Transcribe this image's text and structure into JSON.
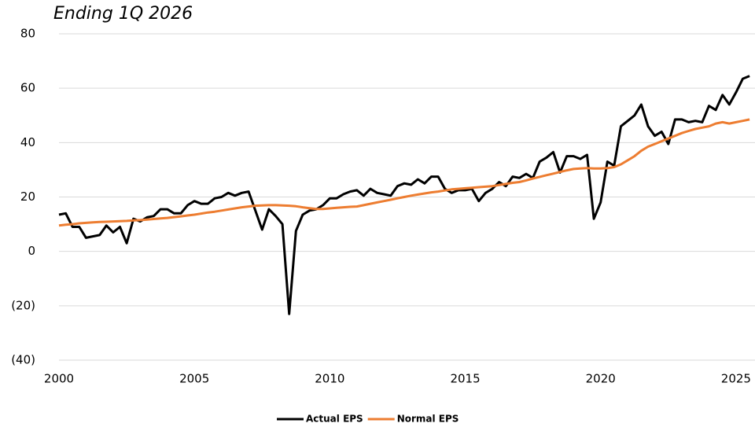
{
  "chart_data": {
    "type": "line",
    "title": "Ending 1Q 2026",
    "x": [
      2000,
      2000.25,
      2000.5,
      2000.75,
      2001,
      2001.25,
      2001.5,
      2001.75,
      2002,
      2002.25,
      2002.5,
      2002.75,
      2003,
      2003.25,
      2003.5,
      2003.75,
      2004,
      2004.25,
      2004.5,
      2004.75,
      2005,
      2005.25,
      2005.5,
      2005.75,
      2006,
      2006.25,
      2006.5,
      2006.75,
      2007,
      2007.25,
      2007.5,
      2007.75,
      2008,
      2008.25,
      2008.5,
      2008.75,
      2009,
      2009.25,
      2009.5,
      2009.75,
      2010,
      2010.25,
      2010.5,
      2010.75,
      2011,
      2011.25,
      2011.5,
      2011.75,
      2012,
      2012.25,
      2012.5,
      2012.75,
      2013,
      2013.25,
      2013.5,
      2013.75,
      2014,
      2014.25,
      2014.5,
      2014.75,
      2015,
      2015.25,
      2015.5,
      2015.75,
      2016,
      2016.25,
      2016.5,
      2016.75,
      2017,
      2017.25,
      2017.5,
      2017.75,
      2018,
      2018.25,
      2018.5,
      2018.75,
      2019,
      2019.25,
      2019.5,
      2019.75,
      2020,
      2020.25,
      2020.5,
      2020.75,
      2021,
      2021.25,
      2021.5,
      2021.75,
      2022,
      2022.25,
      2022.5,
      2022.75,
      2023,
      2023.25,
      2023.5,
      2023.75,
      2024,
      2024.25,
      2024.5,
      2024.75,
      2025,
      2025.25,
      2025.5
    ],
    "series": [
      {
        "name": "Actual EPS",
        "color": "#000000",
        "values": [
          13.5,
          14,
          9,
          9,
          5,
          5.5,
          6,
          9.5,
          7,
          9,
          3,
          12,
          11,
          12.5,
          13,
          15.5,
          15.5,
          14,
          14,
          17,
          18.5,
          17.5,
          17.5,
          19.5,
          20,
          21.5,
          20.5,
          21.5,
          22,
          15,
          8,
          15.5,
          13,
          10,
          -23,
          7.5,
          13.5,
          15,
          15.5,
          17,
          19.5,
          19.5,
          21,
          22,
          22.5,
          20.5,
          23,
          21.5,
          21,
          20.5,
          24,
          25,
          24.5,
          26.5,
          25,
          27.5,
          27.5,
          23,
          21.5,
          22.5,
          22.5,
          23,
          18.5,
          21.5,
          23,
          25.5,
          24,
          27.5,
          27,
          28.5,
          27,
          33,
          34.5,
          36.5,
          29,
          35,
          35,
          34,
          35.5,
          12,
          18,
          33,
          31.5,
          46,
          48,
          50,
          54,
          46,
          42.5,
          44,
          39.5,
          48.5,
          48.5,
          47.5,
          48,
          47.5,
          53.5,
          52,
          57.5,
          54,
          58.5,
          63.5,
          64.5
        ]
      },
      {
        "name": "Normal EPS",
        "color": "#ed7d31",
        "values": [
          9.5,
          9.8,
          10,
          10.3,
          10.5,
          10.7,
          10.8,
          10.9,
          11,
          11.1,
          11.2,
          11.4,
          11.5,
          11.7,
          11.9,
          12.1,
          12.3,
          12.6,
          12.9,
          13.2,
          13.5,
          13.9,
          14.3,
          14.6,
          15,
          15.4,
          15.8,
          16.2,
          16.5,
          16.8,
          16.9,
          17,
          17,
          16.9,
          16.8,
          16.6,
          16.2,
          15.9,
          15.6,
          15.6,
          15.8,
          16,
          16.2,
          16.4,
          16.5,
          17,
          17.5,
          18,
          18.5,
          19,
          19.5,
          20,
          20.5,
          20.9,
          21.3,
          21.7,
          22,
          22.4,
          22.8,
          23,
          23.2,
          23.4,
          23.6,
          23.8,
          24,
          24.4,
          24.8,
          25.2,
          25.5,
          26.1,
          26.8,
          27.4,
          28,
          28.6,
          29.2,
          29.8,
          30.3,
          30.5,
          30.6,
          30.5,
          30.5,
          30.6,
          31,
          32,
          33.5,
          35,
          37,
          38.5,
          39.5,
          40.5,
          41.5,
          42.5,
          43.5,
          44.3,
          45,
          45.5,
          46,
          47,
          47.5,
          47,
          47.5,
          48,
          48.5
        ]
      }
    ],
    "xlim": [
      2000,
      2025.7
    ],
    "xticks": [
      2000,
      2005,
      2010,
      2015,
      2020,
      2025
    ],
    "ylim": [
      -40,
      80
    ],
    "yticks": [
      {
        "value": -40,
        "label": "(40)"
      },
      {
        "value": -20,
        "label": "(20)"
      },
      0,
      20,
      40,
      60,
      80
    ],
    "grid": true,
    "legend": "bottom"
  }
}
